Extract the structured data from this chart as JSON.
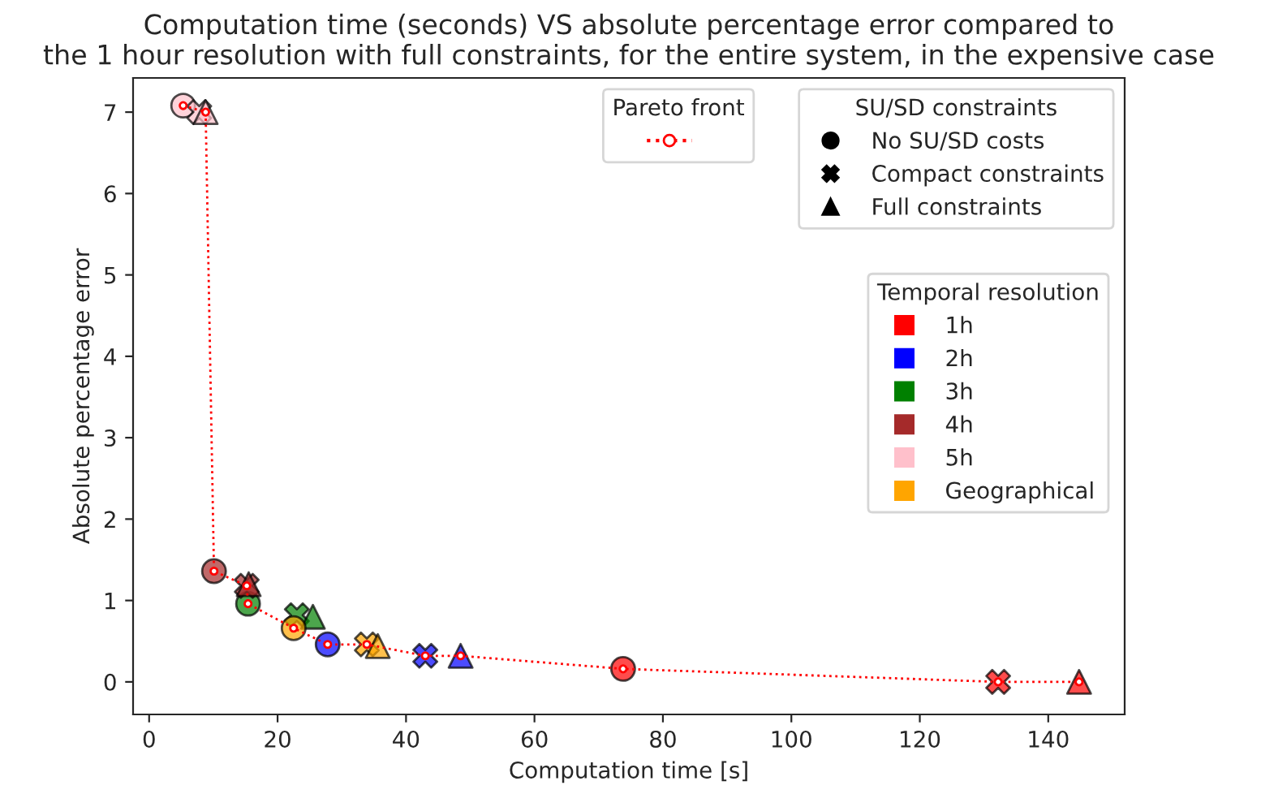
{
  "chart_data": {
    "type": "scatter",
    "title": "Computation time (seconds) VS absolute percentage error compared to\nthe 1 hour resolution with full constraints, for the entire system, in the expensive case",
    "xlabel": "Computation time [s]",
    "ylabel": "Absolute percentage error",
    "xlim": [
      -2.5,
      151.9
    ],
    "ylim": [
      -0.4,
      7.42
    ],
    "xticks": [
      0,
      20,
      40,
      60,
      80,
      100,
      120,
      140
    ],
    "yticks": [
      0,
      1,
      2,
      3,
      4,
      5,
      6,
      7
    ],
    "grid": false,
    "legend_title": "Temporal resolution",
    "legend": "right",
    "annotations": [
      "Pareto front",
      "SU/SD constraints",
      "No SU/SD costs",
      "Compact constraints",
      "Full constraints"
    ],
    "series": [
      {
        "name": "1h",
        "color": "#ff0000",
        "marker": "circle",
        "x": [
          73.8
        ],
        "values": [
          0.16
        ]
      },
      {
        "color": "#ff0000",
        "marker": "cross",
        "x": [
          132.2
        ],
        "values": [
          0.0
        ]
      },
      {
        "color": "#ff0000",
        "marker": "triangle",
        "x": [
          144.8
        ],
        "values": [
          0.0
        ]
      },
      {
        "name": "2h",
        "color": "#0000ff",
        "marker": "circle",
        "x": [
          27.8
        ],
        "values": [
          0.46
        ]
      },
      {
        "color": "#0000ff",
        "marker": "cross",
        "x": [
          43.0
        ],
        "values": [
          0.32
        ]
      },
      {
        "color": "#0000ff",
        "marker": "triangle",
        "x": [
          48.5
        ],
        "values": [
          0.32
        ]
      },
      {
        "name": "3h",
        "color": "#008000",
        "marker": "circle",
        "x": [
          15.4
        ],
        "values": [
          0.96
        ]
      },
      {
        "color": "#008000",
        "marker": "cross",
        "x": [
          23.0
        ],
        "values": [
          0.82
        ]
      },
      {
        "color": "#008000",
        "marker": "triangle",
        "x": [
          25.5
        ],
        "values": [
          0.8
        ]
      },
      {
        "name": "4h",
        "color": "#a52a2a",
        "marker": "circle",
        "x": [
          10.1
        ],
        "values": [
          1.36
        ]
      },
      {
        "color": "#a52a2a",
        "marker": "cross",
        "x": [
          15.2
        ],
        "values": [
          1.18
        ]
      },
      {
        "color": "#a52a2a",
        "marker": "triangle",
        "x": [
          15.5
        ],
        "values": [
          1.2
        ]
      },
      {
        "name": "5h",
        "color": "#ffc0cb",
        "marker": "circle",
        "x": [
          5.3
        ],
        "values": [
          7.08
        ]
      },
      {
        "color": "#ffc0cb",
        "marker": "cross",
        "x": [
          7.8
        ],
        "values": [
          7.0
        ]
      },
      {
        "color": "#ffc0cb",
        "marker": "triangle",
        "x": [
          8.8
        ],
        "values": [
          7.0
        ]
      },
      {
        "name": "Geographical",
        "color": "#ffa500",
        "marker": "circle",
        "x": [
          22.5
        ],
        "values": [
          0.66
        ]
      },
      {
        "color": "#ffa500",
        "marker": "cross",
        "x": [
          33.9
        ],
        "values": [
          0.46
        ]
      },
      {
        "color": "#ffa500",
        "marker": "triangle",
        "x": [
          35.6
        ],
        "values": [
          0.44
        ]
      },
      {
        "type": "line",
        "color": "#ff0000",
        "marker": "circle",
        "line_style": "dotted",
        "x": [
          5.3,
          8.8,
          10.1,
          15.2,
          15.4,
          22.5,
          27.8,
          33.9,
          43.0,
          48.5,
          73.8,
          132.2,
          144.8
        ],
        "values": [
          7.08,
          7.0,
          1.36,
          1.18,
          0.96,
          0.66,
          0.46,
          0.46,
          0.32,
          0.32,
          0.16,
          0.0,
          0.0
        ]
      }
    ]
  }
}
